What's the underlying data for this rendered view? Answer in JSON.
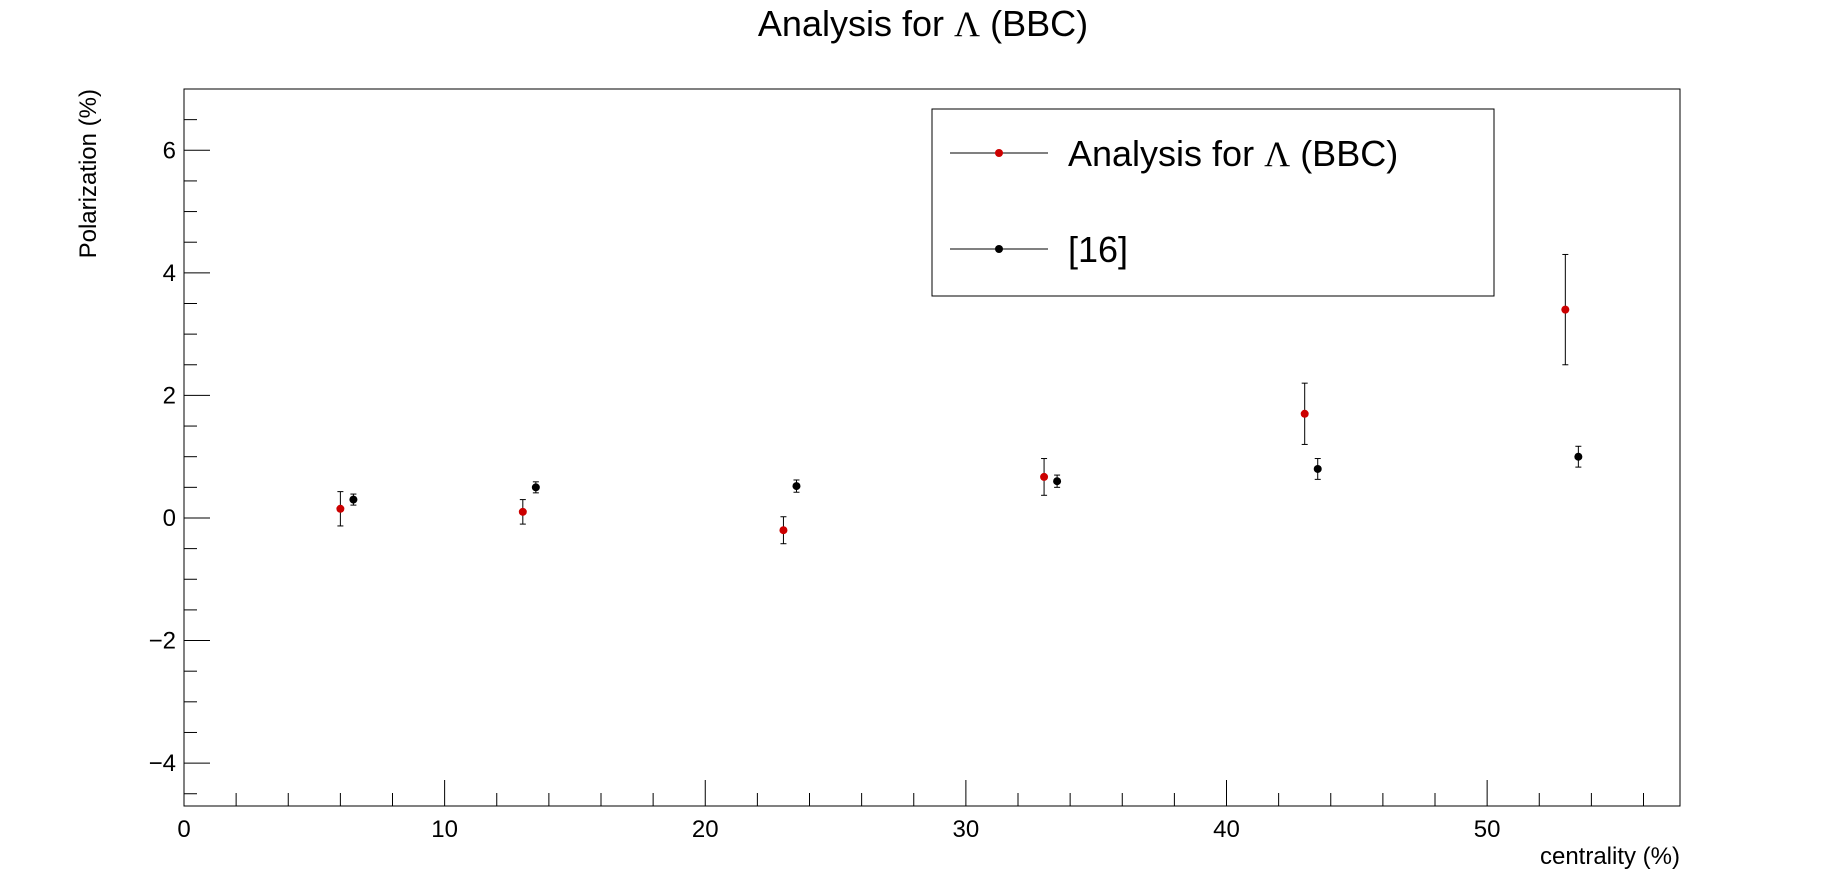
{
  "chart_data": {
    "type": "scatter",
    "title": {
      "prefix": "Analysis for ",
      "symbol": "Λ",
      "suffix": "  (BBC)"
    },
    "xlabel": "centrality (%)",
    "ylabel": "Polarization (%)",
    "xlim": [
      0,
      57.4
    ],
    "ylim": [
      -4.7,
      7.0
    ],
    "x_ticks": [
      0,
      10,
      20,
      30,
      40,
      50
    ],
    "y_ticks": [
      -4,
      -2,
      0,
      2,
      4,
      6
    ],
    "grid": false,
    "legend_position": "top-right",
    "series": [
      {
        "name": {
          "prefix": "Analysis for ",
          "symbol": "Λ",
          "suffix": "  (BBC)"
        },
        "color": "#cc0000",
        "points": [
          {
            "x": 6,
            "y": 0.15,
            "err": 0.28
          },
          {
            "x": 13,
            "y": 0.1,
            "err": 0.2
          },
          {
            "x": 23,
            "y": -0.2,
            "err": 0.22
          },
          {
            "x": 33,
            "y": 0.67,
            "err": 0.3
          },
          {
            "x": 43,
            "y": 1.7,
            "err": 0.5
          },
          {
            "x": 53,
            "y": 3.4,
            "err": 0.9
          }
        ]
      },
      {
        "name": "[16]",
        "color": "#000000",
        "points": [
          {
            "x": 6.5,
            "y": 0.3,
            "err": 0.09
          },
          {
            "x": 13.5,
            "y": 0.5,
            "err": 0.09
          },
          {
            "x": 23.5,
            "y": 0.52,
            "err": 0.1
          },
          {
            "x": 33.5,
            "y": 0.6,
            "err": 0.1
          },
          {
            "x": 43.5,
            "y": 0.8,
            "err": 0.17
          },
          {
            "x": 53.5,
            "y": 1.0,
            "err": 0.17
          }
        ]
      }
    ]
  }
}
